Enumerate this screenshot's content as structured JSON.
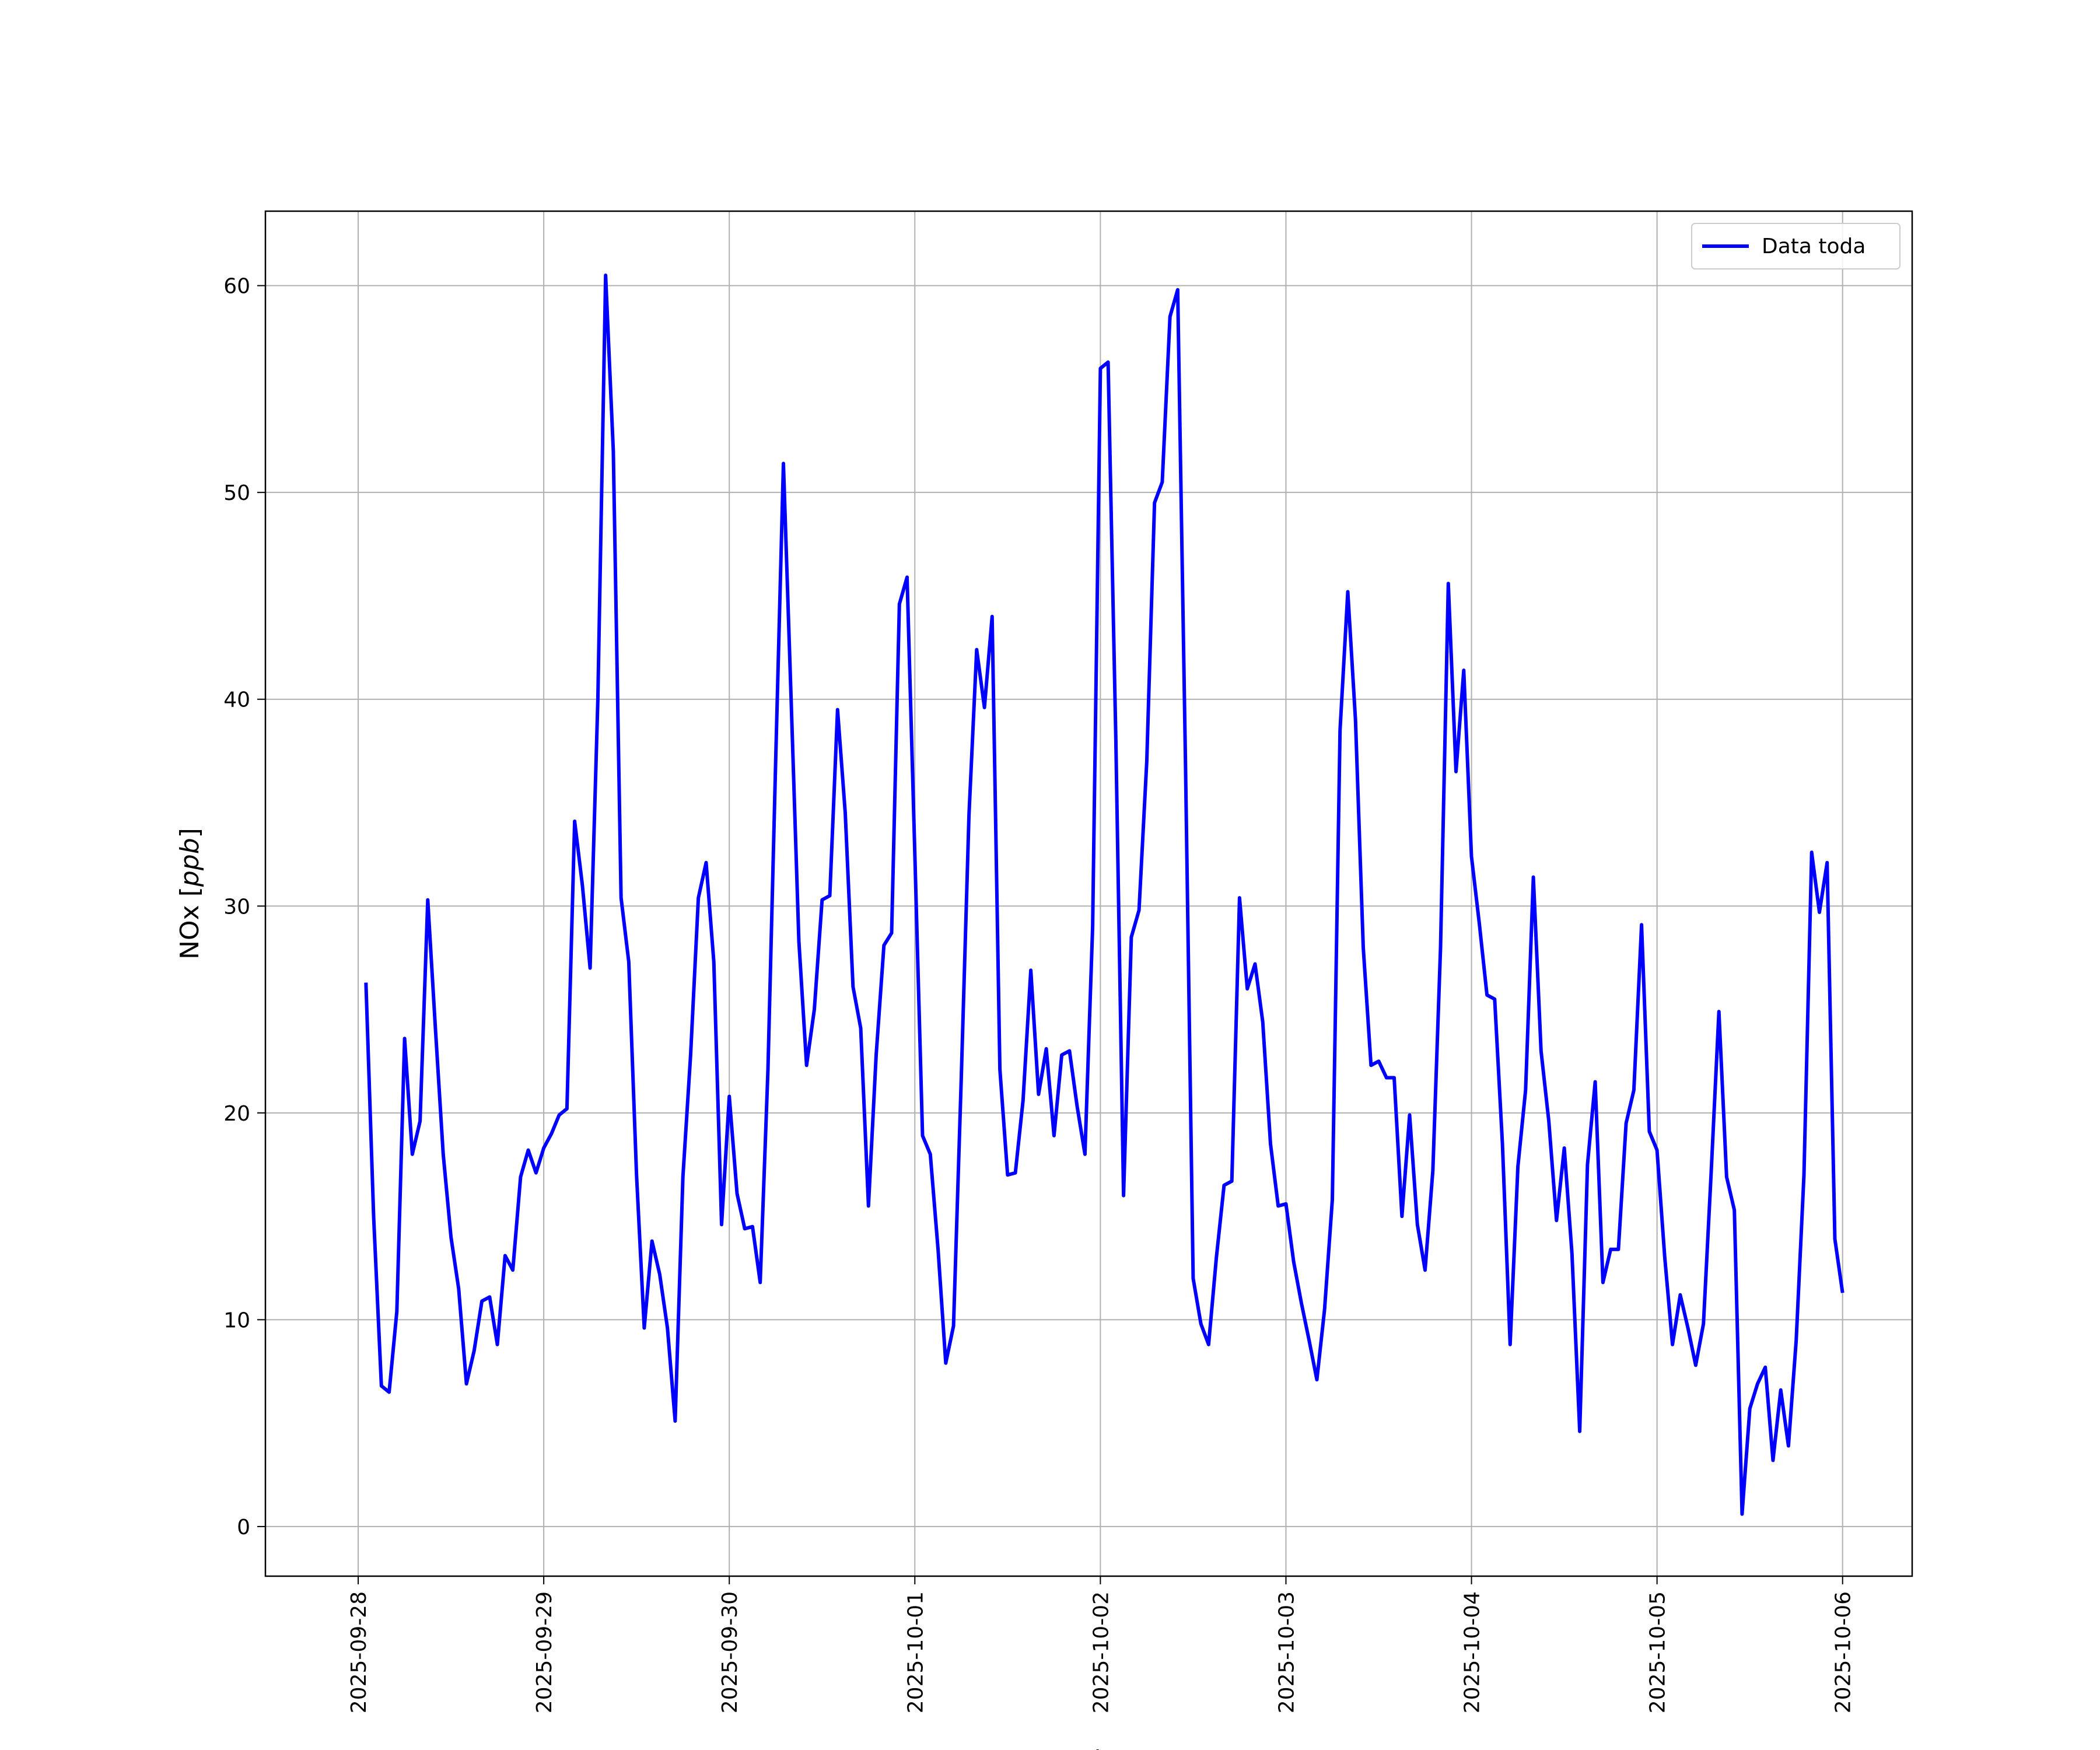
{
  "chart_data": {
    "type": "line",
    "xlabel": "Fecha",
    "ylabel_prefix": "NOx [",
    "ylabel_unit": "ppb",
    "ylabel_suffix": "]",
    "xlim": [
      "2025-09-27 12:00",
      "2025-10-06 09:00"
    ],
    "ylim": [
      -2.4,
      63.6
    ],
    "x_ticks": [
      "2025-09-28",
      "2025-09-29",
      "2025-09-30",
      "2025-10-01",
      "2025-10-02",
      "2025-10-03",
      "2025-10-04",
      "2025-10-05",
      "2025-10-06"
    ],
    "y_ticks": [
      0,
      10,
      20,
      30,
      40,
      50,
      60
    ],
    "grid": true,
    "legend_position": "top-right",
    "series": [
      {
        "name": "Data toda",
        "color": "#0000ff",
        "x": [
          "2025-09-28 01:00",
          "2025-09-28 02:00",
          "2025-09-28 03:00",
          "2025-09-28 04:00",
          "2025-09-28 05:00",
          "2025-09-28 06:00",
          "2025-09-28 07:00",
          "2025-09-28 08:00",
          "2025-09-28 09:00",
          "2025-09-28 10:00",
          "2025-09-28 11:00",
          "2025-09-28 12:00",
          "2025-09-28 13:00",
          "2025-09-28 14:00",
          "2025-09-28 15:00",
          "2025-09-28 16:00",
          "2025-09-28 17:00",
          "2025-09-28 18:00",
          "2025-09-28 19:00",
          "2025-09-28 20:00",
          "2025-09-28 21:00",
          "2025-09-28 22:00",
          "2025-09-28 23:00",
          "2025-09-29 00:00",
          "2025-09-29 01:00",
          "2025-09-29 02:00",
          "2025-09-29 03:00",
          "2025-09-29 04:00",
          "2025-09-29 05:00",
          "2025-09-29 06:00",
          "2025-09-29 07:00",
          "2025-09-29 08:00",
          "2025-09-29 09:00",
          "2025-09-29 10:00",
          "2025-09-29 11:00",
          "2025-09-29 12:00",
          "2025-09-29 13:00",
          "2025-09-29 14:00",
          "2025-09-29 15:00",
          "2025-09-29 16:00",
          "2025-09-29 17:00",
          "2025-09-29 18:00",
          "2025-09-29 19:00",
          "2025-09-29 20:00",
          "2025-09-29 21:00",
          "2025-09-29 22:00",
          "2025-09-29 23:00",
          "2025-09-30 00:00",
          "2025-09-30 01:00",
          "2025-09-30 02:00",
          "2025-09-30 03:00",
          "2025-09-30 04:00",
          "2025-09-30 05:00",
          "2025-09-30 06:00",
          "2025-09-30 07:00",
          "2025-09-30 08:00",
          "2025-09-30 09:00",
          "2025-09-30 10:00",
          "2025-09-30 11:00",
          "2025-09-30 12:00",
          "2025-09-30 13:00",
          "2025-09-30 14:00",
          "2025-09-30 15:00",
          "2025-09-30 16:00",
          "2025-09-30 17:00",
          "2025-09-30 18:00",
          "2025-09-30 19:00",
          "2025-09-30 20:00",
          "2025-09-30 21:00",
          "2025-09-30 22:00",
          "2025-09-30 23:00",
          "2025-10-01 00:00",
          "2025-10-01 01:00",
          "2025-10-01 02:00",
          "2025-10-01 03:00",
          "2025-10-01 04:00",
          "2025-10-01 05:00",
          "2025-10-01 06:00",
          "2025-10-01 07:00",
          "2025-10-01 08:00",
          "2025-10-01 09:00",
          "2025-10-01 10:00",
          "2025-10-01 11:00",
          "2025-10-01 12:00",
          "2025-10-01 13:00",
          "2025-10-01 14:00",
          "2025-10-01 15:00",
          "2025-10-01 16:00",
          "2025-10-01 17:00",
          "2025-10-01 18:00",
          "2025-10-01 19:00",
          "2025-10-01 20:00",
          "2025-10-01 21:00",
          "2025-10-01 22:00",
          "2025-10-01 23:00",
          "2025-10-02 00:00",
          "2025-10-02 01:00",
          "2025-10-02 02:00",
          "2025-10-02 03:00",
          "2025-10-02 04:00",
          "2025-10-02 05:00",
          "2025-10-02 06:00",
          "2025-10-02 07:00",
          "2025-10-02 08:00",
          "2025-10-02 09:00",
          "2025-10-02 10:00",
          "2025-10-02 11:00",
          "2025-10-02 12:00",
          "2025-10-02 13:00",
          "2025-10-02 14:00",
          "2025-10-02 15:00",
          "2025-10-02 16:00",
          "2025-10-02 17:00",
          "2025-10-02 18:00",
          "2025-10-02 19:00",
          "2025-10-02 20:00",
          "2025-10-02 21:00",
          "2025-10-02 22:00",
          "2025-10-02 23:00",
          "2025-10-03 00:00",
          "2025-10-03 01:00",
          "2025-10-03 02:00",
          "2025-10-03 03:00",
          "2025-10-03 04:00",
          "2025-10-03 05:00",
          "2025-10-03 06:00",
          "2025-10-03 07:00",
          "2025-10-03 08:00",
          "2025-10-03 09:00",
          "2025-10-03 10:00",
          "2025-10-03 11:00",
          "2025-10-03 12:00",
          "2025-10-03 13:00",
          "2025-10-03 14:00",
          "2025-10-03 15:00",
          "2025-10-03 16:00",
          "2025-10-03 17:00",
          "2025-10-03 18:00",
          "2025-10-03 19:00",
          "2025-10-03 20:00",
          "2025-10-03 21:00",
          "2025-10-03 22:00",
          "2025-10-03 23:00",
          "2025-10-04 00:00",
          "2025-10-04 01:00",
          "2025-10-04 02:00",
          "2025-10-04 03:00",
          "2025-10-04 04:00",
          "2025-10-04 05:00",
          "2025-10-04 06:00",
          "2025-10-04 07:00",
          "2025-10-04 08:00",
          "2025-10-04 09:00",
          "2025-10-04 10:00",
          "2025-10-04 11:00",
          "2025-10-04 12:00",
          "2025-10-04 13:00",
          "2025-10-04 14:00",
          "2025-10-04 15:00",
          "2025-10-04 16:00",
          "2025-10-04 17:00",
          "2025-10-04 18:00",
          "2025-10-04 19:00",
          "2025-10-04 20:00",
          "2025-10-04 21:00",
          "2025-10-04 22:00",
          "2025-10-04 23:00",
          "2025-10-05 00:00",
          "2025-10-05 01:00",
          "2025-10-05 02:00",
          "2025-10-05 03:00",
          "2025-10-05 04:00",
          "2025-10-05 05:00",
          "2025-10-05 06:00",
          "2025-10-05 07:00",
          "2025-10-05 08:00",
          "2025-10-05 09:00",
          "2025-10-05 10:00",
          "2025-10-05 11:00",
          "2025-10-05 12:00",
          "2025-10-05 13:00",
          "2025-10-05 14:00",
          "2025-10-05 15:00",
          "2025-10-05 16:00",
          "2025-10-05 17:00",
          "2025-10-05 18:00",
          "2025-10-05 19:00",
          "2025-10-05 20:00",
          "2025-10-05 21:00",
          "2025-10-05 22:00",
          "2025-10-05 23:00",
          "2025-10-06 00:00"
        ],
        "y": [
          26.3,
          15.0,
          6.8,
          6.5,
          10.4,
          23.6,
          18.0,
          19.6,
          30.3,
          24.0,
          18.0,
          14.0,
          11.5,
          6.9,
          8.5,
          10.9,
          11.1,
          8.8,
          13.1,
          12.4,
          16.9,
          18.2,
          17.1,
          18.3,
          19.0,
          19.9,
          20.2,
          34.1,
          31.0,
          27.0,
          40.0,
          60.5,
          52.0,
          30.4,
          27.3,
          17.0,
          9.6,
          13.8,
          12.2,
          9.6,
          5.1,
          16.9,
          22.8,
          30.4,
          32.1,
          27.3,
          14.6,
          20.8,
          16.1,
          14.4,
          14.5,
          11.8,
          22.1,
          37.0,
          51.4,
          40.0,
          28.3,
          22.3,
          25.0,
          30.3,
          30.5,
          39.5,
          34.5,
          26.1,
          24.1,
          15.5,
          22.8,
          28.1,
          28.7,
          44.6,
          45.9,
          32.5,
          18.9,
          18.0,
          13.4,
          7.9,
          9.7,
          21.6,
          34.4,
          42.4,
          39.6,
          44.0,
          22.1,
          17.0,
          17.1,
          20.6,
          26.9,
          20.9,
          23.1,
          18.9,
          22.8,
          23.0,
          20.3,
          18.0,
          29.0,
          56.0,
          56.3,
          38.0,
          16.0,
          28.5,
          29.8,
          37.0,
          49.5,
          50.5,
          58.5,
          59.8,
          37.0,
          12.0,
          9.8,
          8.8,
          13.0,
          16.5,
          16.7,
          30.4,
          26.0,
          27.2,
          24.4,
          18.5,
          15.5,
          15.6,
          12.8,
          10.8,
          9.0,
          7.1,
          10.5,
          15.8,
          38.5,
          45.2,
          39.0,
          28.0,
          22.3,
          22.5,
          21.7,
          21.7,
          15.0,
          19.9,
          14.6,
          12.4,
          17.2,
          28.0,
          45.6,
          36.5,
          41.4,
          32.4,
          29.2,
          25.7,
          25.5,
          18.5,
          8.8,
          17.4,
          21.1,
          31.4,
          23.0,
          19.6,
          14.8,
          18.3,
          13.2,
          4.6,
          17.5,
          21.5,
          11.8,
          13.4,
          13.4,
          19.5,
          21.1,
          29.1,
          19.1,
          18.2,
          13.0,
          8.8,
          11.2,
          9.6,
          7.8,
          9.8,
          17.1,
          24.9,
          16.9,
          15.3,
          0.6,
          5.7,
          6.9,
          7.7,
          3.2,
          6.6,
          3.9,
          9.0,
          17.0,
          32.6,
          29.7,
          32.1,
          13.9,
          11.3
        ]
      }
    ]
  }
}
